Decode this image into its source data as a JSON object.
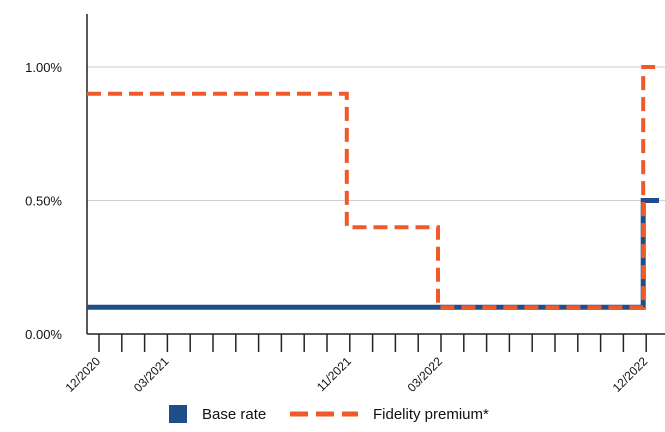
{
  "chart_data": {
    "type": "line",
    "title": "",
    "xlabel": "",
    "ylabel": "",
    "x_labels": [
      "12/2020",
      "03/2021",
      "11/2021",
      "03/2022",
      "12/2022"
    ],
    "x_label_months": [
      0,
      3,
      11,
      15,
      24
    ],
    "y_ticks": [
      0,
      0.5,
      1.0
    ],
    "y_tick_labels": [
      "0.00%",
      "0.50%",
      "1.00%"
    ],
    "ylim": [
      0,
      1.2
    ],
    "grid": "horizontal",
    "legend_position": "bottom",
    "series": [
      {
        "name": "Base rate",
        "style": "solid",
        "color": "#1d4e89",
        "steps": [
          {
            "month": 0,
            "value": 0.1
          },
          {
            "month": 24,
            "value": 0.5
          }
        ],
        "end_month": 25
      },
      {
        "name": "Fidelity premium*",
        "style": "dashed",
        "color": "#f05a28",
        "steps": [
          {
            "month": 0,
            "value": 0.9
          },
          {
            "month": 11,
            "value": 0.4
          },
          {
            "month": 15,
            "value": 0.1
          },
          {
            "month": 24,
            "value": 1.0
          }
        ],
        "end_month": 25
      }
    ]
  }
}
